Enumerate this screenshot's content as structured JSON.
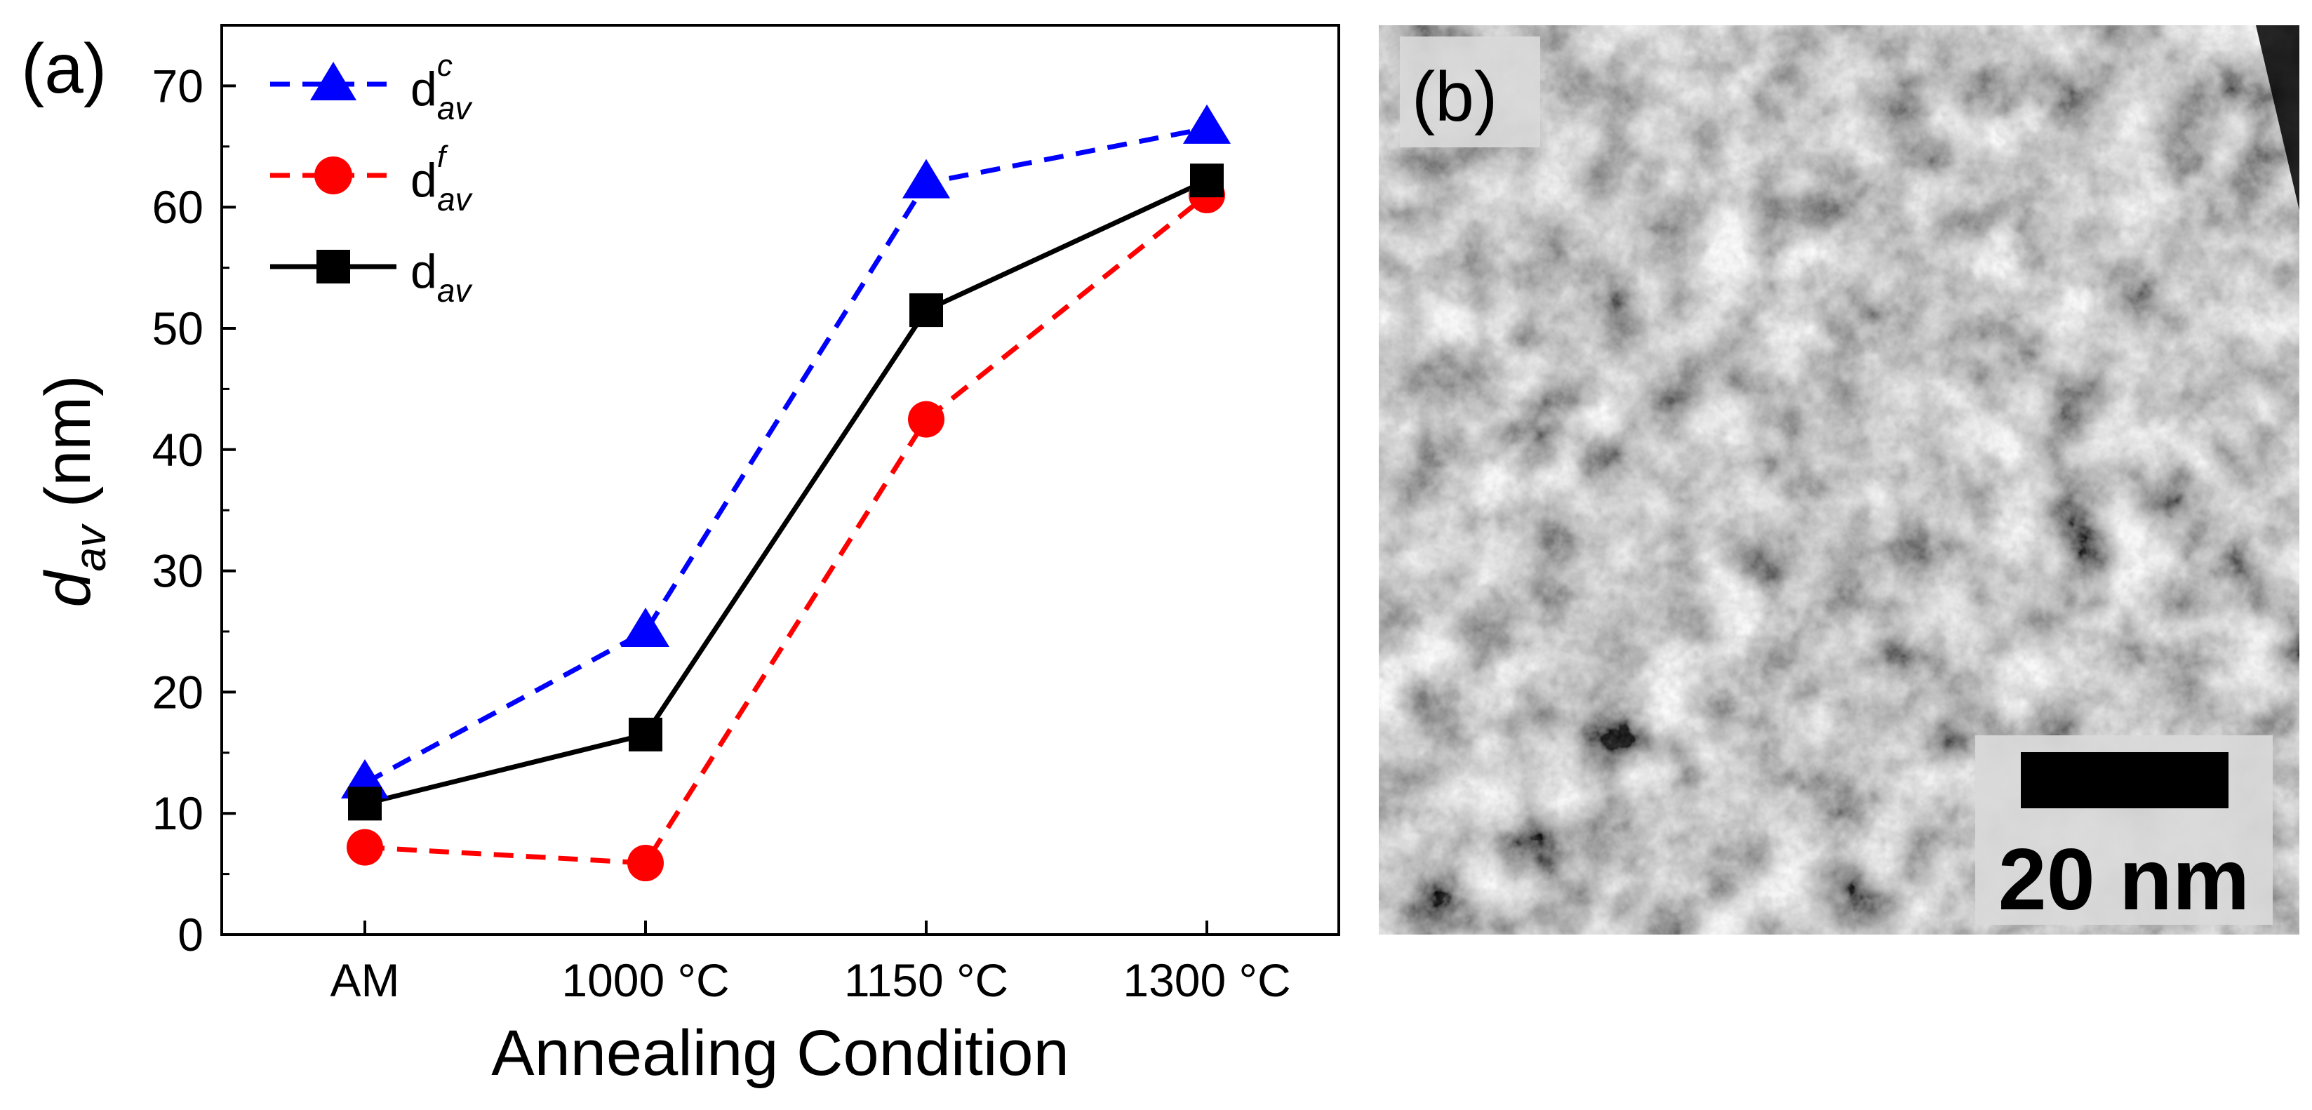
{
  "panel_a": {
    "label": "(a)"
  },
  "panel_b": {
    "label": "(b)",
    "scale_bar_label": "20 nm"
  },
  "legend": [
    {
      "base": "d",
      "sup": "c",
      "sub": "av"
    },
    {
      "base": "d",
      "sup": "f",
      "sub": "av"
    },
    {
      "base": "d",
      "sup": "",
      "sub": "av"
    }
  ],
  "ylabel": {
    "base": "d",
    "sub": "av",
    "unit": " (nm)"
  },
  "chart_data": {
    "type": "line",
    "title": "",
    "xlabel": "Annealing Condition",
    "ylabel": "d_av (nm)",
    "categories": [
      "AM",
      "1000 °C",
      "1150 °C",
      "1300 °C"
    ],
    "ylim": [
      0,
      75
    ],
    "yticks": [
      0,
      10,
      20,
      30,
      40,
      50,
      60,
      70
    ],
    "grid": false,
    "legend_position": "top-left",
    "series": [
      {
        "name": "d_av^c",
        "values": [
          12.5,
          25,
          62,
          66.5
        ],
        "color": "#0000ff",
        "marker": "triangle",
        "dash": "dashed"
      },
      {
        "name": "d_av^f",
        "values": [
          7.2,
          5.9,
          42.5,
          61
        ],
        "color": "#ff0000",
        "marker": "circle",
        "dash": "dashed"
      },
      {
        "name": "d_av",
        "values": [
          10.8,
          16.5,
          51.5,
          62.2
        ],
        "color": "#000000",
        "marker": "square",
        "dash": "solid"
      }
    ]
  }
}
